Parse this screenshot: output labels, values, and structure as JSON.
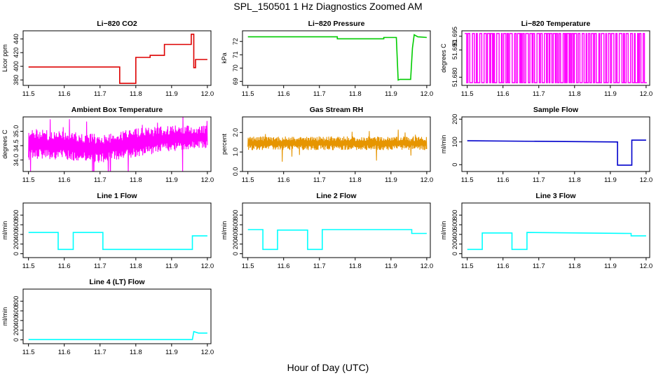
{
  "title": "SPL_150501  1 Hz Diagnostics Zoomed AM",
  "xlabel": "Hour of Day (UTC)",
  "chart_data": [
    {
      "id": "co2",
      "type": "line",
      "title": "Li−820 CO2",
      "ylabel": "Licor ppm",
      "color": "#dd0000",
      "xlim": [
        11.485,
        12.01
      ],
      "ylim": [
        372,
        452
      ],
      "xticks": [
        "11.5",
        "11.6",
        "11.7",
        "11.8",
        "11.9",
        "12.0"
      ],
      "yticks": [
        {
          "v": 380,
          "label": "380"
        },
        {
          "v": 400,
          "label": "400"
        },
        {
          "v": 420,
          "label": "420"
        },
        {
          "v": 440,
          "label": "440"
        }
      ],
      "series": [
        {
          "x": [
            11.5,
            11.755,
            11.755,
            11.8,
            11.8,
            11.84,
            11.84,
            11.88,
            11.88,
            11.955,
            11.955,
            11.962,
            11.962,
            11.967,
            11.967,
            12.0
          ],
          "y": [
            399,
            399,
            375,
            375,
            413,
            413,
            416,
            416,
            432,
            432,
            447,
            447,
            398,
            398,
            410,
            410
          ]
        }
      ]
    },
    {
      "id": "pressure",
      "type": "line",
      "title": "Li−820 Pressure",
      "ylabel": "kPa",
      "color": "#00cc00",
      "xlim": [
        11.485,
        12.01
      ],
      "ylim": [
        68.7,
        72.8
      ],
      "xticks": [
        "11.5",
        "11.6",
        "11.7",
        "11.8",
        "11.9",
        "12.0"
      ],
      "yticks": [
        {
          "v": 69,
          "label": "69"
        },
        {
          "v": 70,
          "label": "70"
        },
        {
          "v": 71,
          "label": "71"
        },
        {
          "v": 72,
          "label": "72"
        }
      ],
      "series": [
        {
          "x": [
            11.5,
            11.75,
            11.75,
            11.88,
            11.88,
            11.915,
            11.92,
            11.925,
            11.955,
            11.96,
            11.965,
            11.975,
            12.0
          ],
          "y": [
            72.35,
            72.35,
            72.2,
            72.2,
            72.3,
            72.3,
            69.1,
            69.15,
            69.15,
            71.5,
            72.5,
            72.35,
            72.3
          ]
        }
      ]
    },
    {
      "id": "licor-temp",
      "type": "bar",
      "title": "Li−820 Temperature",
      "ylabel": "degrees C",
      "color": "#ff00ff",
      "xlim": [
        11.485,
        12.01
      ],
      "ylim": [
        51.677,
        51.697
      ],
      "xticks": [
        "11.5",
        "11.6",
        "11.7",
        "11.8",
        "11.9",
        "12.0"
      ],
      "yticks": [
        {
          "v": 51.68,
          "label": "51.680"
        },
        {
          "v": 51.69,
          "label": "51.690"
        },
        {
          "v": 51.695,
          "label": "51.695"
        }
      ],
      "note": "signal alternates rapidly between 51.678 and 51.696 across the whole period",
      "levels": [
        51.678,
        51.696
      ]
    },
    {
      "id": "box-temp",
      "type": "line",
      "title": "Ambient Box Temperature",
      "ylabel": "degrees C",
      "color": "#ff00ff",
      "xlim": [
        11.485,
        12.01
      ],
      "ylim": [
        33.6,
        35.5
      ],
      "xticks": [
        "11.5",
        "11.6",
        "11.7",
        "11.8",
        "11.9",
        "12.0"
      ],
      "yticks": [
        {
          "v": 34.0,
          "label": "34.0"
        },
        {
          "v": 34.5,
          "label": "34.5"
        },
        {
          "v": 35.0,
          "label": "35.0"
        }
      ],
      "band": {
        "x": [
          11.5,
          11.6,
          11.7,
          11.8,
          11.9,
          12.0
        ],
        "low": [
          34.0,
          34.0,
          33.9,
          34.1,
          34.3,
          34.4
        ],
        "high": [
          35.1,
          35.0,
          34.9,
          35.1,
          35.2,
          35.2
        ]
      }
    },
    {
      "id": "rh",
      "type": "line",
      "title": "Gas Stream RH",
      "ylabel": "percent",
      "color": "#e69500",
      "xlim": [
        11.485,
        12.01
      ],
      "ylim": [
        0,
        2.8
      ],
      "xticks": [
        "11.5",
        "11.6",
        "11.7",
        "11.8",
        "11.9",
        "12.0"
      ],
      "yticks": [
        {
          "v": 0.0,
          "label": "0.0"
        },
        {
          "v": 1.0,
          "label": "1.0"
        },
        {
          "v": 2.0,
          "label": "2.0"
        }
      ],
      "band": {
        "x": [
          11.5,
          12.0
        ],
        "low": [
          1.1,
          1.1
        ],
        "high": [
          1.8,
          1.8
        ]
      }
    },
    {
      "id": "sample-flow",
      "type": "line",
      "title": "Sample Flow",
      "ylabel": "ml/min",
      "color": "#0000cc",
      "xlim": [
        11.485,
        12.01
      ],
      "ylim": [
        -30,
        210
      ],
      "xticks": [
        "11.5",
        "11.6",
        "11.7",
        "11.8",
        "11.9",
        "12.0"
      ],
      "yticks": [
        {
          "v": 0,
          "label": "0"
        },
        {
          "v": 100,
          "label": "100"
        },
        {
          "v": 200,
          "label": "200"
        }
      ],
      "series": [
        {
          "x": [
            11.5,
            11.92,
            11.92,
            11.96,
            11.96,
            12.0
          ],
          "y": [
            105,
            100,
            -2,
            -2,
            108,
            108
          ]
        }
      ]
    },
    {
      "id": "line1",
      "type": "line",
      "title": "Line 1 Flow",
      "ylabel": "ml/min",
      "color": "#00ffff",
      "xlim": [
        11.485,
        12.01
      ],
      "ylim": [
        -80,
        1050
      ],
      "xticks": [
        "11.5",
        "11.6",
        "11.7",
        "11.8",
        "11.9",
        "12.0"
      ],
      "yticks": [
        {
          "v": 0,
          "label": "0"
        },
        {
          "v": 200,
          "label": "200"
        },
        {
          "v": 400,
          "label": "400"
        },
        {
          "v": 600,
          "label": "600"
        },
        {
          "v": 800,
          "label": "800"
        }
      ],
      "series": [
        {
          "x": [
            11.5,
            11.583,
            11.583,
            11.625,
            11.625,
            11.708,
            11.708,
            11.958,
            11.958,
            12.0
          ],
          "y": [
            440,
            440,
            90,
            90,
            440,
            440,
            90,
            90,
            370,
            370
          ]
        }
      ]
    },
    {
      "id": "line2",
      "type": "line",
      "title": "Line 2 Flow",
      "ylabel": "ml/min",
      "color": "#00ffff",
      "xlim": [
        11.485,
        12.01
      ],
      "ylim": [
        -80,
        1050
      ],
      "xticks": [
        "11.5",
        "11.6",
        "11.7",
        "11.8",
        "11.9",
        "12.0"
      ],
      "yticks": [
        {
          "v": 0,
          "label": "0"
        },
        {
          "v": 200,
          "label": "200"
        },
        {
          "v": 400,
          "label": "400"
        },
        {
          "v": 600,
          "label": "600"
        },
        {
          "v": 800,
          "label": "800"
        }
      ],
      "series": [
        {
          "x": [
            11.5,
            11.542,
            11.542,
            11.583,
            11.583,
            11.667,
            11.667,
            11.708,
            11.708,
            11.958,
            11.958,
            12.0
          ],
          "y": [
            500,
            500,
            90,
            90,
            490,
            490,
            90,
            90,
            500,
            500,
            420,
            420
          ]
        }
      ]
    },
    {
      "id": "line3",
      "type": "line",
      "title": "Line 3 Flow",
      "ylabel": "ml/min",
      "color": "#00ffff",
      "xlim": [
        11.485,
        12.01
      ],
      "ylim": [
        -80,
        1050
      ],
      "xticks": [
        "11.5",
        "11.6",
        "11.7",
        "11.8",
        "11.9",
        "12.0"
      ],
      "yticks": [
        {
          "v": 0,
          "label": "0"
        },
        {
          "v": 200,
          "label": "200"
        },
        {
          "v": 400,
          "label": "400"
        },
        {
          "v": 600,
          "label": "600"
        },
        {
          "v": 800,
          "label": "800"
        }
      ],
      "series": [
        {
          "x": [
            11.5,
            11.542,
            11.542,
            11.625,
            11.625,
            11.667,
            11.667,
            11.958,
            11.958,
            12.0
          ],
          "y": [
            90,
            90,
            430,
            430,
            90,
            90,
            440,
            420,
            370,
            370
          ]
        }
      ]
    },
    {
      "id": "line4",
      "type": "line",
      "title": "Line 4 (LT) Flow",
      "ylabel": "ml/min",
      "color": "#00ffff",
      "xlim": [
        11.485,
        12.01
      ],
      "ylim": [
        -80,
        1050
      ],
      "xticks": [
        "11.5",
        "11.6",
        "11.7",
        "11.8",
        "11.9",
        "12.0"
      ],
      "yticks": [
        {
          "v": 0,
          "label": "0"
        },
        {
          "v": 200,
          "label": "200"
        },
        {
          "v": 400,
          "label": "400"
        },
        {
          "v": 600,
          "label": "600"
        },
        {
          "v": 800,
          "label": "800"
        }
      ],
      "series": [
        {
          "x": [
            11.5,
            11.958,
            11.958,
            11.962,
            11.975,
            12.0
          ],
          "y": [
            5,
            5,
            5,
            170,
            140,
            140
          ]
        }
      ]
    }
  ]
}
